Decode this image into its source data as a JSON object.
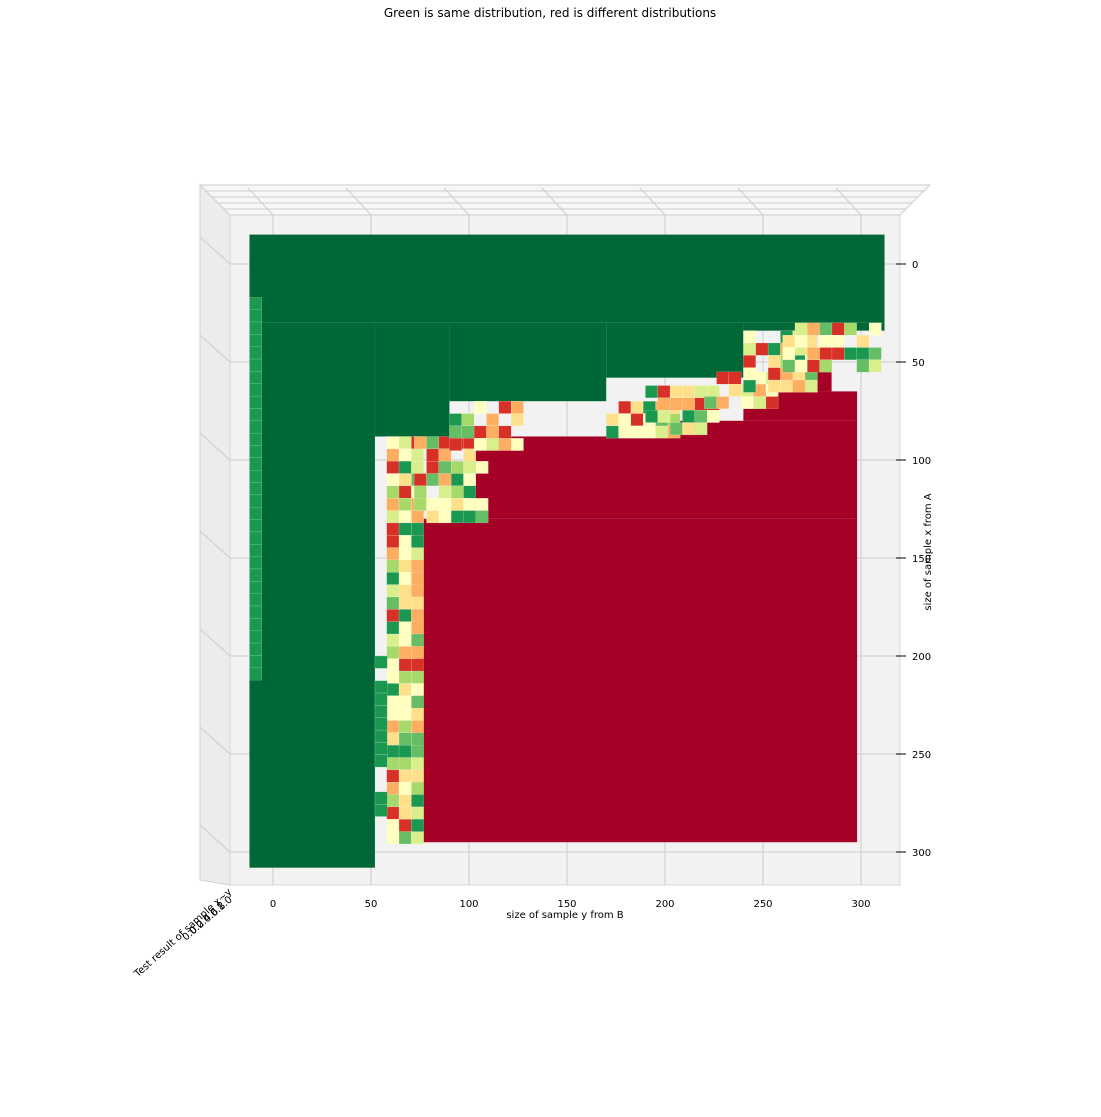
{
  "chart_data": {
    "type": "surface3d",
    "title": "Green is same distribution, red is different distributions",
    "xlabel": "size of sample y from B",
    "ylabel": "size of sample x from A",
    "zlabel": "Test result of sample x~y",
    "x_ticks": [
      "0",
      "50",
      "100",
      "150",
      "200",
      "250",
      "300"
    ],
    "y_ticks": [
      "0",
      "50",
      "100",
      "150",
      "200",
      "250",
      "300"
    ],
    "z_ticks": [
      "0.0",
      "0.2",
      "0.4",
      "0.6",
      "0.8",
      "1.0"
    ],
    "x_range": [
      0,
      300
    ],
    "y_range": [
      0,
      300
    ],
    "z_range": [
      0.0,
      1.0
    ],
    "view": "top-down",
    "colormap": "RdYlGn",
    "colors": {
      "same": "#006837",
      "different": "#a50026",
      "pane": "#f2f2f2",
      "grid": "#cccccc"
    },
    "regions": [
      {
        "label": "same",
        "value": 1.0,
        "x": [
          -12,
          312
        ],
        "y": [
          -15,
          30
        ]
      },
      {
        "label": "same",
        "value": 1.0,
        "x": [
          -12,
          52
        ],
        "y": [
          30,
          308
        ]
      },
      {
        "label": "same",
        "value": 1.0,
        "x": [
          52,
          90
        ],
        "y": [
          30,
          88
        ]
      },
      {
        "label": "same",
        "value": 1.0,
        "x": [
          90,
          170
        ],
        "y": [
          30,
          70
        ]
      },
      {
        "label": "same",
        "value": 1.0,
        "x": [
          170,
          240
        ],
        "y": [
          30,
          58
        ]
      },
      {
        "label": "same",
        "value": 1.0,
        "x": [
          240,
          312
        ],
        "y": [
          30,
          34
        ]
      },
      {
        "label": "different",
        "value": 0.0,
        "x": [
          72,
          298
        ],
        "y": [
          130,
          295
        ]
      },
      {
        "label": "different",
        "value": 0.0,
        "x": [
          100,
          298
        ],
        "y": [
          88,
          130
        ]
      },
      {
        "label": "different",
        "value": 0.0,
        "x": [
          190,
          298
        ],
        "y": [
          80,
          88
        ]
      },
      {
        "label": "different",
        "value": 0.0,
        "x": [
          240,
          298
        ],
        "y": [
          65,
          80
        ]
      },
      {
        "label": "different",
        "value": 0.0,
        "x": [
          260,
          285
        ],
        "y": [
          55,
          65
        ]
      }
    ],
    "transition_band_values": [
      0.1,
      0.25,
      0.35,
      0.45,
      0.55,
      0.65,
      0.75,
      0.85
    ]
  }
}
